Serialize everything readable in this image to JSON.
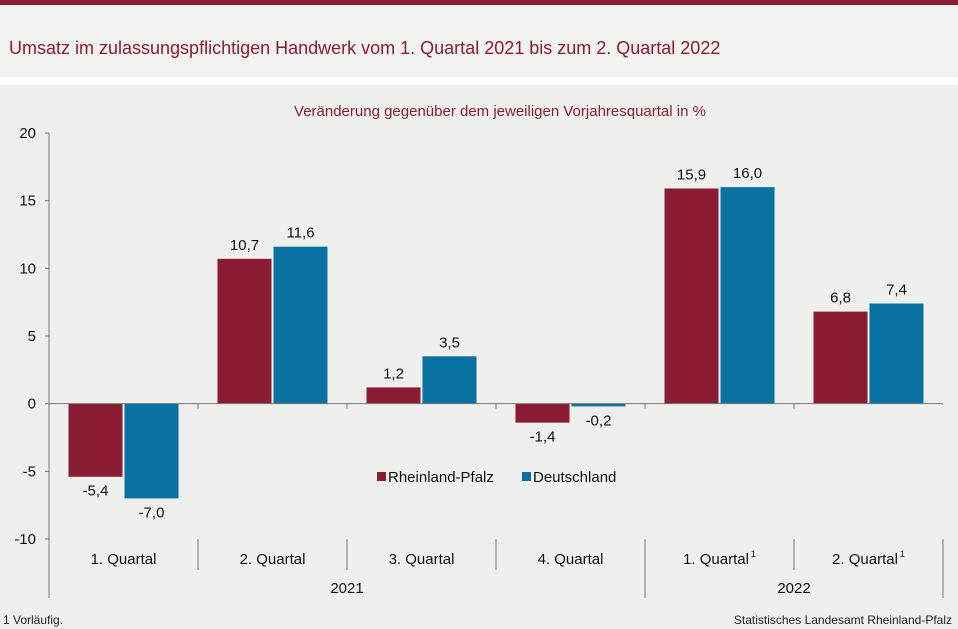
{
  "header": {
    "title": "Umsatz  im zulassungspflichtigen Handwerk vom 1. Quartal 2021 bis zum 2. Quartal 2022"
  },
  "chart_data": {
    "type": "bar",
    "subtitle": "Veränderung  gegenüber  dem jeweiligen  Vorjahresquartal  in %",
    "categories": [
      "1. Quartal",
      "2. Quartal",
      "3. Quartal",
      "4. Quartal",
      "1. Quartal",
      "2. Quartal"
    ],
    "category_superscripts": [
      "",
      "",
      "",
      "",
      "1",
      "1"
    ],
    "groups": [
      {
        "label": "2021",
        "categories": [
          0,
          1,
          2,
          3
        ]
      },
      {
        "label": "2022",
        "categories": [
          4,
          5
        ]
      }
    ],
    "series": [
      {
        "name": "Rheinland-Pfalz",
        "color": "#8a1c33",
        "values": [
          -5.4,
          10.7,
          1.2,
          -1.4,
          15.9,
          6.8
        ],
        "labels": [
          "-5,4",
          "10,7",
          "1,2",
          "-1,4",
          "15,9",
          "6,8"
        ]
      },
      {
        "name": "Deutschland",
        "color": "#0a72a3",
        "values": [
          -7.0,
          11.6,
          3.5,
          -0.2,
          16.0,
          7.4
        ],
        "labels": [
          "-7,0",
          "11,6",
          "3,5",
          "-0,2",
          "16,0",
          "7,4"
        ]
      }
    ],
    "ylim": [
      -10,
      20
    ],
    "yticks": [
      -10,
      -5,
      0,
      5,
      10,
      15,
      20
    ],
    "ytick_labels": [
      "-10",
      "-5",
      "0",
      "5",
      "10",
      "15",
      "20"
    ],
    "legend_position": "inside-lower-center"
  },
  "footer": {
    "footnote": "1 Vorläufig.",
    "source": "Statistisches Landesamt  Rheinland-Pfalz"
  }
}
